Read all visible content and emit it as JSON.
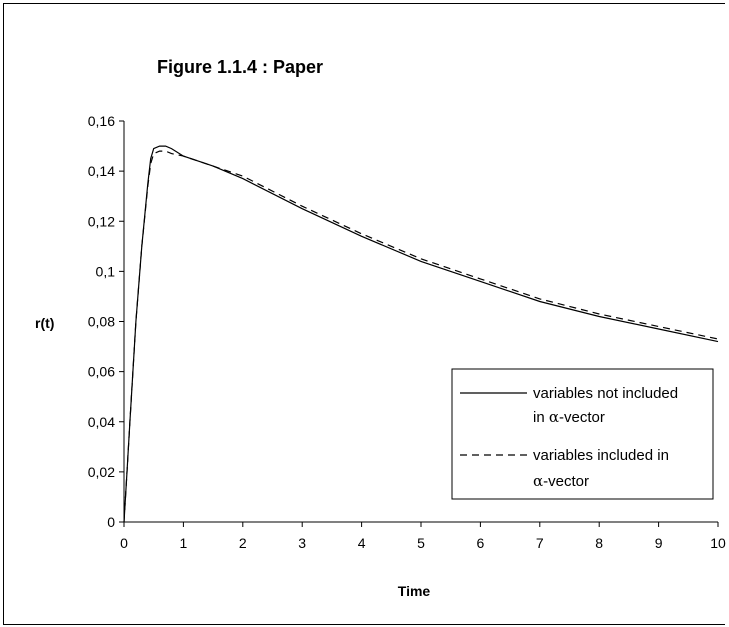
{
  "chart_data": {
    "type": "line",
    "title": "Figure 1.1.4 : Paper",
    "xlabel": "Time",
    "ylabel": "r(t)",
    "xlim": [
      0,
      10
    ],
    "ylim": [
      0,
      0.16
    ],
    "xticks": [
      "0",
      "1",
      "2",
      "3",
      "4",
      "5",
      "6",
      "7",
      "8",
      "9",
      "10"
    ],
    "yticks": [
      "0",
      "0,02",
      "0,04",
      "0,06",
      "0,08",
      "0,1",
      "0,12",
      "0,14",
      "0,16"
    ],
    "grid": false,
    "legend_position": "right",
    "series": [
      {
        "name_lines": [
          "variables not included",
          "in ",
          "α",
          "-vector"
        ],
        "style": "solid",
        "color": "#000000",
        "x": [
          0,
          0.05,
          0.1,
          0.2,
          0.3,
          0.4,
          0.45,
          0.5,
          0.6,
          0.7,
          0.8,
          1.0,
          1.5,
          2,
          3,
          4,
          5,
          6,
          7,
          8,
          9,
          10
        ],
        "y": [
          0,
          0.02,
          0.04,
          0.08,
          0.11,
          0.135,
          0.145,
          0.149,
          0.15,
          0.15,
          0.149,
          0.146,
          0.142,
          0.137,
          0.125,
          0.114,
          0.104,
          0.096,
          0.088,
          0.082,
          0.077,
          0.072
        ]
      },
      {
        "name_lines": [
          "variables included in",
          "",
          "α",
          "-vector"
        ],
        "style": "dashed",
        "color": "#000000",
        "x": [
          0,
          0.05,
          0.1,
          0.2,
          0.3,
          0.4,
          0.45,
          0.5,
          0.6,
          0.7,
          0.8,
          1.0,
          1.5,
          2,
          3,
          4,
          5,
          6,
          7,
          8,
          9,
          10
        ],
        "y": [
          0,
          0.02,
          0.04,
          0.08,
          0.11,
          0.134,
          0.143,
          0.147,
          0.148,
          0.148,
          0.147,
          0.146,
          0.142,
          0.138,
          0.126,
          0.115,
          0.105,
          0.097,
          0.089,
          0.083,
          0.078,
          0.073
        ]
      }
    ]
  }
}
